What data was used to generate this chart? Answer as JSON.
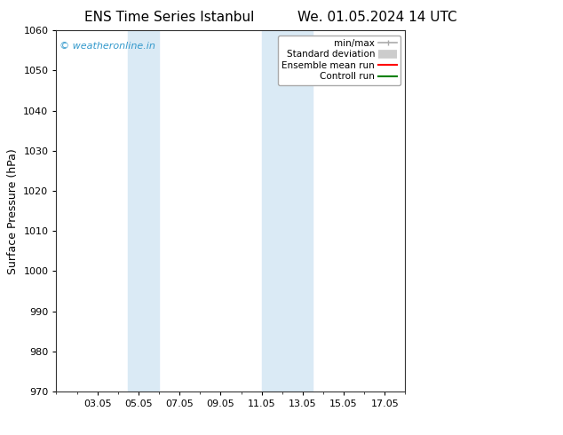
{
  "title_left": "ENS Time Series Istanbul",
  "title_right": "We. 01.05.2024 14 UTC",
  "ylabel": "Surface Pressure (hPa)",
  "ylim": [
    970,
    1060
  ],
  "yticks": [
    970,
    980,
    990,
    1000,
    1010,
    1020,
    1030,
    1040,
    1050,
    1060
  ],
  "xlim": [
    1,
    18
  ],
  "xtick_labels": [
    "03.05",
    "05.05",
    "07.05",
    "09.05",
    "11.05",
    "13.05",
    "15.05",
    "17.05"
  ],
  "xtick_positions": [
    3,
    5,
    7,
    9,
    11,
    13,
    15,
    17
  ],
  "watermark": "© weatheronline.in",
  "watermark_color": "#3399cc",
  "bg_color": "#ffffff",
  "plot_bg_color": "#ffffff",
  "shaded_bands": [
    {
      "x_start": 4.5,
      "x_end": 6.0,
      "color": "#daeaf5"
    },
    {
      "x_start": 11.0,
      "x_end": 12.0,
      "color": "#daeaf5"
    },
    {
      "x_start": 12.0,
      "x_end": 13.5,
      "color": "#daeaf5"
    }
  ],
  "legend_entries": [
    {
      "label": "min/max",
      "color": "#aaaaaa",
      "lw": 1.2
    },
    {
      "label": "Standard deviation",
      "color": "#cccccc",
      "lw": 7
    },
    {
      "label": "Ensemble mean run",
      "color": "#ff0000",
      "lw": 1.5
    },
    {
      "label": "Controll run",
      "color": "#008000",
      "lw": 1.5
    }
  ],
  "title_fontsize": 11,
  "axis_label_fontsize": 9,
  "tick_fontsize": 8,
  "watermark_fontsize": 8,
  "legend_fontsize": 7.5
}
